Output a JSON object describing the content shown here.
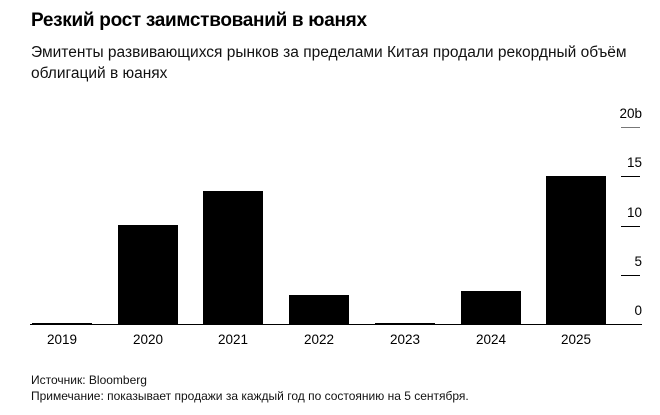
{
  "header": {
    "title": "Резкий рост заимствований в юанях",
    "subtitle": "Эмитенты развивающихся рынков за пределами Китая продали рекордный объём облигаций в юанях"
  },
  "footer": {
    "source": "Источник: Bloomberg",
    "note": "Примечание: показывает продажи за каждый год по состоянию на 5 сентября."
  },
  "colors": {
    "bar": "#000000",
    "background": "#ffffff"
  },
  "axis": {
    "y_ticks": [
      {
        "label": "20b",
        "value": 20
      },
      {
        "label": "15",
        "value": 15
      },
      {
        "label": "10",
        "value": 10
      },
      {
        "label": "5",
        "value": 5
      },
      {
        "label": "0",
        "value": 0
      }
    ]
  },
  "chart_data": {
    "type": "bar",
    "title": "Резкий рост заимствований в юанях",
    "subtitle": "Эмитенты развивающихся рынков за пределами Китая продали рекордный объём облигаций в юанях",
    "categories": [
      "2019",
      "2020",
      "2021",
      "2022",
      "2023",
      "2024",
      "2025"
    ],
    "values": [
      0.1,
      10.0,
      13.5,
      2.9,
      0.1,
      3.4,
      15.0
    ],
    "xlabel": "",
    "ylabel": "",
    "y_unit": "b",
    "ylim": [
      0,
      20
    ],
    "y_ticks": [
      0,
      5,
      10,
      15,
      20
    ],
    "y_axis_position": "right",
    "grid": false,
    "legend": null,
    "annotations": [
      "Источник: Bloomberg",
      "Примечание: показывает продажи за каждый год по состоянию на 5 сентября."
    ]
  }
}
